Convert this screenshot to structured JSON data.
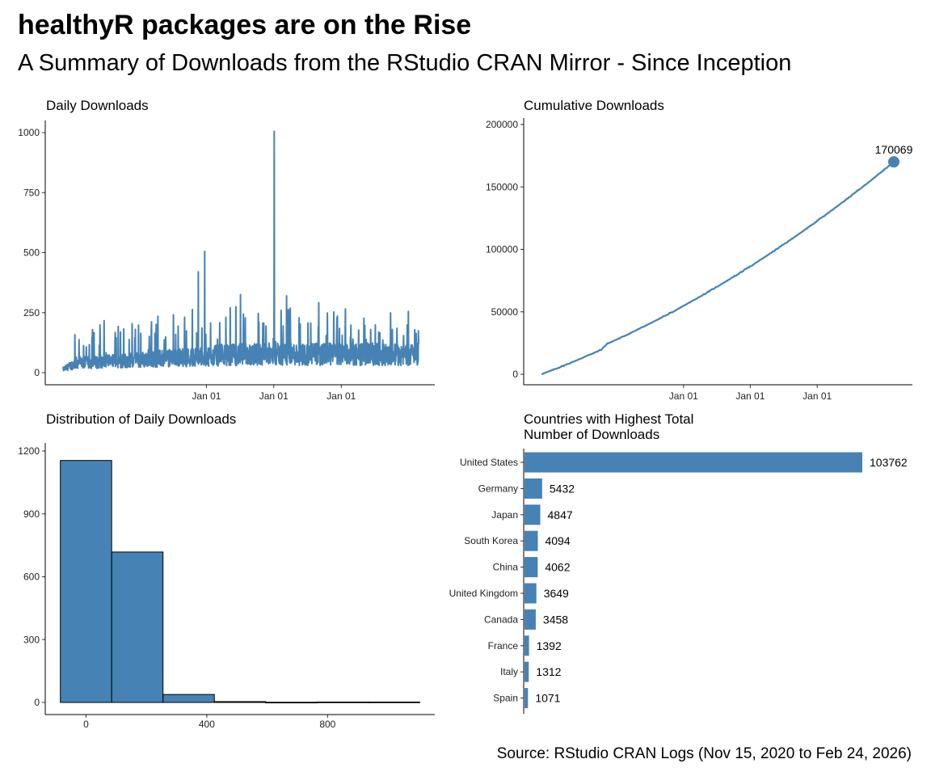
{
  "header": {
    "title": "healthyR packages are on the Rise",
    "subtitle": "A Summary of Downloads from the RStudio CRAN Mirror - Since Inception"
  },
  "caption": "Source: RStudio CRAN Logs (Nov 15, 2020 to Feb 24, 2026)",
  "colors": {
    "accent": "#4682B4",
    "axis": "#000000"
  },
  "chart_data": [
    {
      "type": "line",
      "title": "Daily Downloads",
      "xlabel": "",
      "ylabel": "",
      "x_range": [
        "2020-11-15",
        "2026-02-24"
      ],
      "x_ticks": [
        "Jan 01",
        "Jan 01",
        "Jan 01"
      ],
      "ylim": [
        0,
        1050
      ],
      "y_ticks": [
        0,
        250,
        500,
        750,
        1000
      ],
      "series": [
        {
          "values_approx": {
            "baseline_range": [
              10,
              120
            ],
            "typical_peaks": [
              150,
              250
            ],
            "notable_spikes": [
              {
                "x": "2022-11-18",
                "y": 420
              },
              {
                "x": "2022-12-22",
                "y": 505
              },
              {
                "x": "2024-01-03",
                "y": 1005
              },
              {
                "x": "2023-07-05",
                "y": 325
              },
              {
                "x": "2024-03-10",
                "y": 320
              }
            ]
          }
        }
      ]
    },
    {
      "type": "line",
      "title": "Cumulative Downloads",
      "xlabel": "",
      "ylabel": "",
      "x_range": [
        "2020-11-15",
        "2026-02-24"
      ],
      "x_ticks": [
        "Jan 01",
        "Jan 01",
        "Jan 01"
      ],
      "ylim": [
        0,
        200000
      ],
      "y_ticks": [
        0,
        50000,
        100000,
        150000,
        200000
      ],
      "end_point": {
        "value": 170069,
        "label": "170069"
      }
    },
    {
      "type": "bar",
      "subtype": "histogram",
      "title": "Distribution of Daily Downloads",
      "xlabel": "",
      "ylabel": "",
      "x_ticks": [
        0,
        400,
        800
      ],
      "y_ticks": [
        0,
        300,
        600,
        900,
        1200
      ],
      "ylim": [
        0,
        1220
      ],
      "bins": [
        {
          "x0": -85,
          "x1": 85,
          "count": 1155
        },
        {
          "x0": 85,
          "x1": 255,
          "count": 718
        },
        {
          "x0": 255,
          "x1": 425,
          "count": 38
        },
        {
          "x0": 425,
          "x1": 595,
          "count": 4
        },
        {
          "x0": 595,
          "x1": 765,
          "count": 1
        },
        {
          "x0": 765,
          "x1": 935,
          "count": 2
        },
        {
          "x0": 935,
          "x1": 1105,
          "count": 2
        }
      ]
    },
    {
      "type": "bar",
      "orientation": "horizontal",
      "title": "Countries with Highest Total\nNumber of Downloads",
      "xlabel": "",
      "ylabel": "",
      "categories": [
        "United States",
        "Germany",
        "Japan",
        "South Korea",
        "China",
        "United Kingdom",
        "Canada",
        "France",
        "Italy",
        "Spain"
      ],
      "values": [
        103762,
        5432,
        4847,
        4094,
        4062,
        3649,
        3458,
        1392,
        1312,
        1071
      ]
    }
  ]
}
